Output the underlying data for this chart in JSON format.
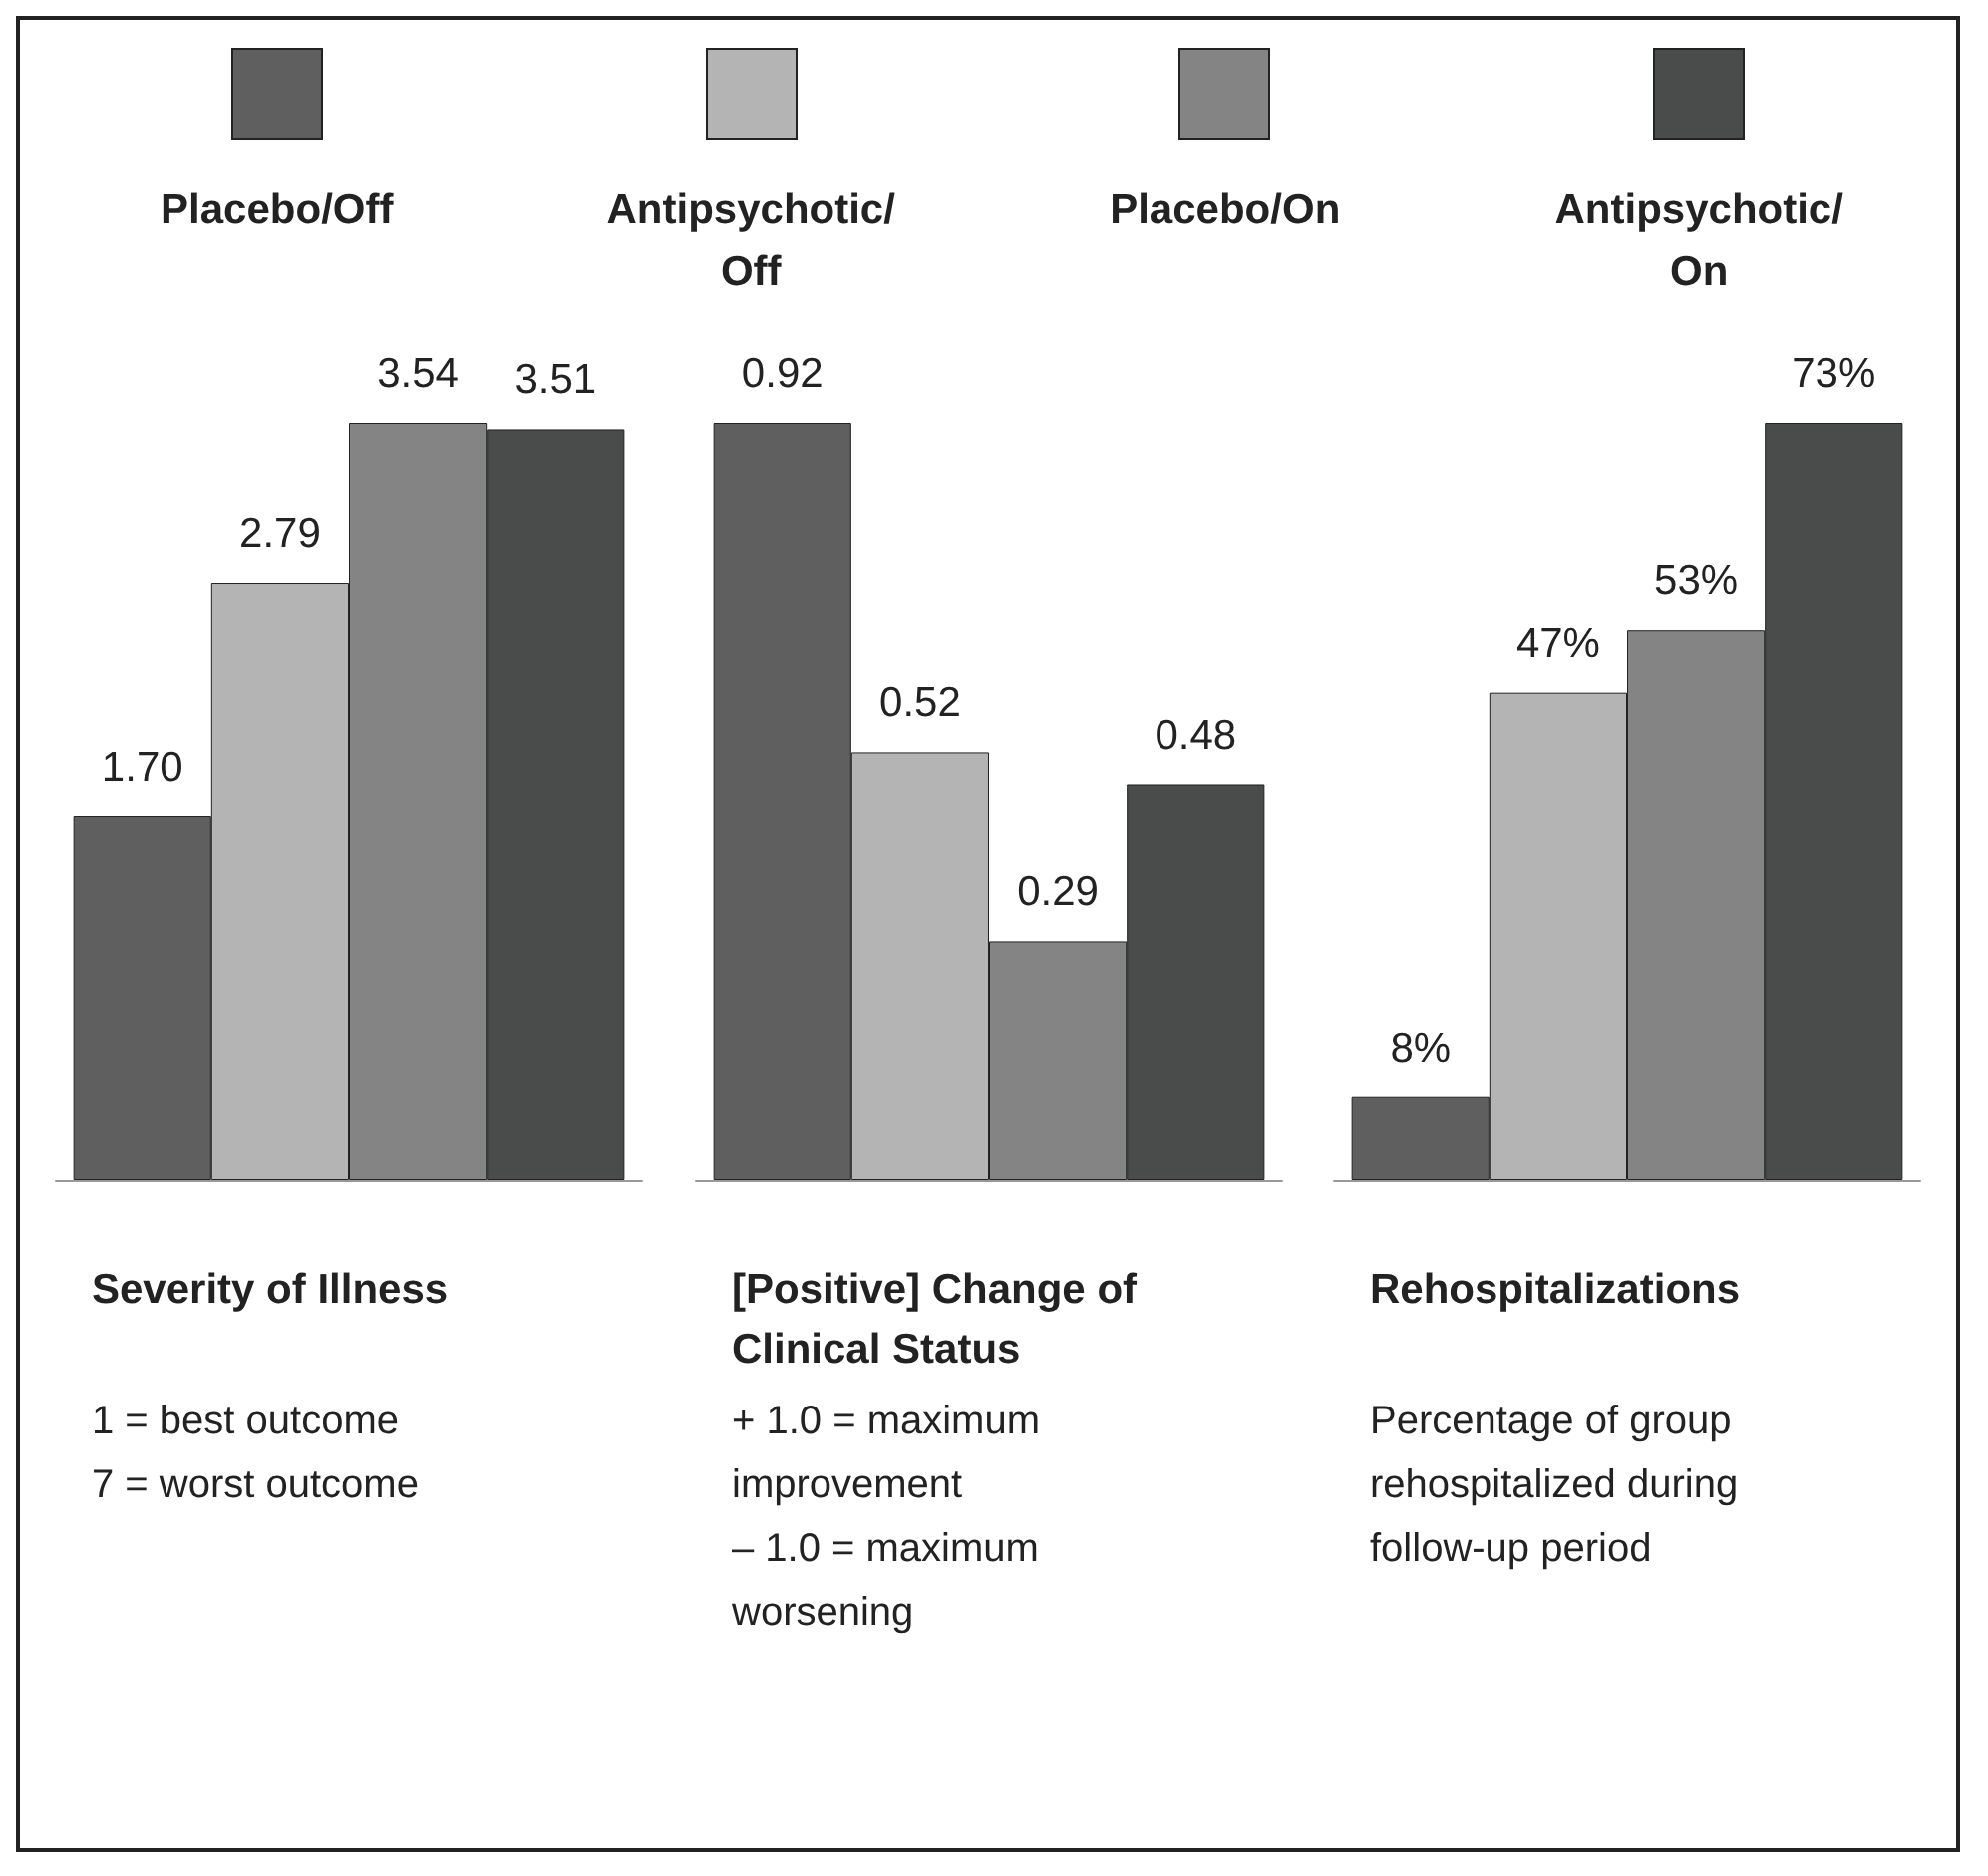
{
  "chart_data": [
    {
      "type": "bar",
      "categories": [
        null
      ],
      "legend": "top",
      "xlabel": "Severity of Illness",
      "annotations": [
        "1 = best outcome",
        "7 = worst outcome"
      ],
      "series": [
        {
          "name": "Placebo/Off",
          "color": "#5f5f5f",
          "values": [
            1.7
          ],
          "value_labels": [
            "1.70"
          ]
        },
        {
          "name": "Antipsychotic/Off",
          "color": "#b4b4b4",
          "values": [
            2.79
          ],
          "value_labels": [
            "2.79"
          ]
        },
        {
          "name": "Placebo/On",
          "color": "#848484",
          "values": [
            3.54
          ],
          "value_labels": [
            "3.54"
          ]
        },
        {
          "name": "Antipsychotic/On",
          "color": "#4a4c4c",
          "values": [
            3.51
          ],
          "value_labels": [
            "3.51"
          ]
        }
      ]
    },
    {
      "type": "bar",
      "categories": [
        null
      ],
      "xlabel": "[Positive] Change of Clinical Status",
      "annotations": [
        "+ 1.0 = maximum improvement",
        "– 1.0 = maximum worsening"
      ],
      "series": [
        {
          "color": "#5f5f5f",
          "values": [
            0.92
          ],
          "value_labels": [
            "0.92"
          ]
        },
        {
          "color": "#b4b4b4",
          "values": [
            0.52
          ],
          "value_labels": [
            "0.52"
          ]
        },
        {
          "color": "#848484",
          "values": [
            0.29
          ],
          "value_labels": [
            "0.29"
          ]
        },
        {
          "color": "#4a4c4c",
          "values": [
            0.48
          ],
          "value_labels": [
            "0.48"
          ]
        }
      ]
    },
    {
      "type": "bar",
      "categories": [
        null
      ],
      "xlabel": "Rehospitalizations",
      "annotations": [
        "Percentage of group rehospitalized during follow-up period"
      ],
      "series": [
        {
          "color": "#5f5f5f",
          "values": [
            8
          ],
          "value_labels": [
            "8%"
          ]
        },
        {
          "color": "#b4b4b4",
          "values": [
            47
          ],
          "value_labels": [
            "47%"
          ]
        },
        {
          "color": "#848484",
          "values": [
            53
          ],
          "value_labels": [
            "53%"
          ]
        },
        {
          "color": "#4a4c4c",
          "values": [
            73
          ],
          "value_labels": [
            "73%"
          ]
        }
      ]
    }
  ]
}
